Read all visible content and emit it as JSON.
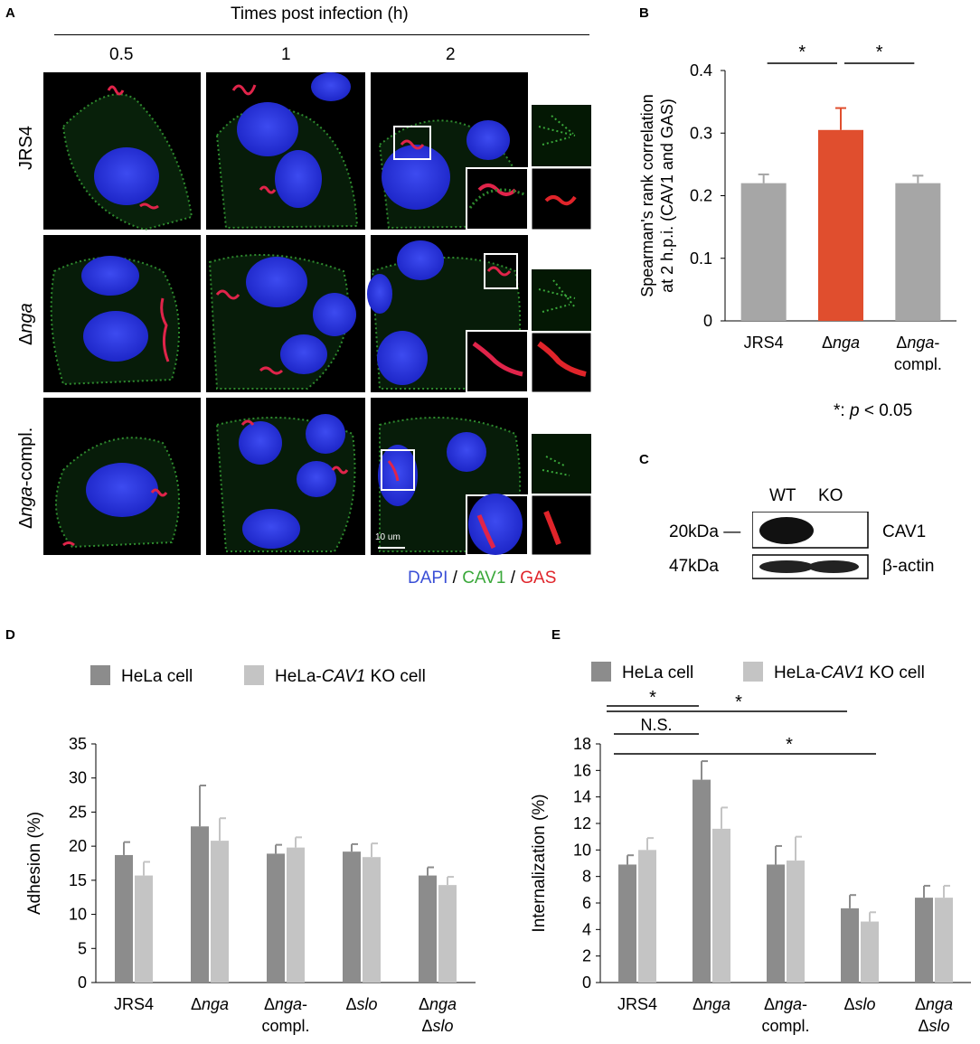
{
  "panels": {
    "A": {
      "letter": "A",
      "time_header": "Times post infection (h)",
      "time_labels": [
        "0.5",
        "1",
        "2"
      ],
      "row_labels": [
        {
          "prefix": "",
          "italic": "",
          "plain": "JRS4"
        },
        {
          "prefix": "Δ",
          "italic": "nga",
          "plain": ""
        },
        {
          "prefix": "Δ",
          "italic": "nga",
          "plain": "-compl."
        }
      ],
      "scale_bar": "10 um",
      "legend": {
        "dapi": "DAPI",
        "sep1": " / ",
        "cav1": "CAV1",
        "sep2": " / ",
        "gas": "GAS"
      },
      "colors": {
        "dapi": "#3a4fd6",
        "cav1": "#3aa83a",
        "gas": "#e0242a"
      }
    },
    "B": {
      "letter": "B",
      "footnote_star": "*",
      "footnote_colon": ": ",
      "footnote_p": "p",
      "footnote_rest": " < 0.05"
    },
    "C": {
      "letter": "C",
      "lanes": [
        "WT",
        "KO"
      ],
      "markers": [
        "20kDa —",
        "47kDa"
      ],
      "proteins": [
        "CAV1",
        "β-actin"
      ]
    },
    "D": {
      "letter": "D"
    },
    "E": {
      "letter": "E"
    }
  },
  "chart_data": [
    {
      "panel": "B",
      "type": "bar",
      "categories": [
        {
          "prefix": "",
          "italic": "",
          "plain": "JRS4",
          "line2": ""
        },
        {
          "prefix": "Δ",
          "italic": "nga",
          "plain": "",
          "line2": ""
        },
        {
          "prefix": "Δ",
          "italic": "nga",
          "plain": "-",
          "line2": "compl."
        }
      ],
      "values": [
        0.22,
        0.305,
        0.22
      ],
      "errors": [
        0.014,
        0.035,
        0.012
      ],
      "bar_colors": [
        "#a6a6a6",
        "#e04e2e",
        "#a6a6a6"
      ],
      "ylabel": "Spearman's rank correlation",
      "ylabel2": "at 2 h.p.i. (CAV1 and GAS)",
      "ylim": [
        0,
        0.4
      ],
      "yticks": [
        "0",
        "0.1",
        "0.2",
        "0.3",
        "0.4"
      ],
      "significance": [
        {
          "from": 0,
          "to": 1,
          "label": "*"
        },
        {
          "from": 1,
          "to": 2,
          "label": "*"
        }
      ]
    },
    {
      "panel": "D",
      "type": "bar",
      "categories": [
        {
          "prefix": "",
          "italic": "",
          "plain": "JRS4",
          "line2pre": "",
          "line2": ""
        },
        {
          "prefix": "Δ",
          "italic": "nga",
          "plain": "",
          "line2pre": "",
          "line2": ""
        },
        {
          "prefix": "Δ",
          "italic": "nga",
          "plain": "-",
          "line2pre": "",
          "line2": "compl."
        },
        {
          "prefix": "Δ",
          "italic": "slo",
          "plain": "",
          "line2pre": "",
          "line2": ""
        },
        {
          "prefix": "Δ",
          "italic": "nga",
          "plain": "",
          "line2pre": "Δ",
          "line2": "slo"
        }
      ],
      "series": [
        {
          "name": "HeLa cell",
          "color": "#8c8c8c",
          "values": [
            18.7,
            22.9,
            18.9,
            19.2,
            15.7
          ],
          "errors": [
            1.9,
            6.0,
            1.3,
            1.1,
            1.2
          ]
        },
        {
          "name_pre": "HeLa-",
          "name_italic": "CAV1",
          "name_post": " KO cell",
          "color": "#c4c4c4",
          "values": [
            15.7,
            20.8,
            19.8,
            18.4,
            14.3
          ],
          "errors": [
            2.0,
            3.3,
            1.5,
            2.0,
            1.2
          ]
        }
      ],
      "ylabel": "Adhesion (%)",
      "ylim": [
        0,
        35
      ],
      "yticks": [
        "0",
        "5",
        "10",
        "15",
        "20",
        "25",
        "30",
        "35"
      ]
    },
    {
      "panel": "E",
      "type": "bar",
      "categories": [
        {
          "prefix": "",
          "italic": "",
          "plain": "JRS4",
          "line2pre": "",
          "line2": ""
        },
        {
          "prefix": "Δ",
          "italic": "nga",
          "plain": "",
          "line2pre": "",
          "line2": ""
        },
        {
          "prefix": "Δ",
          "italic": "nga",
          "plain": "-",
          "line2pre": "",
          "line2": "compl."
        },
        {
          "prefix": "Δ",
          "italic": "slo",
          "plain": "",
          "line2pre": "",
          "line2": ""
        },
        {
          "prefix": "Δ",
          "italic": "nga",
          "plain": "",
          "line2pre": "Δ",
          "line2": "slo"
        }
      ],
      "series": [
        {
          "name": "HeLa cell",
          "color": "#8c8c8c",
          "values": [
            8.9,
            15.3,
            8.9,
            5.6,
            6.4
          ],
          "errors": [
            0.7,
            1.4,
            1.4,
            1.0,
            0.9
          ]
        },
        {
          "name_pre": "HeLa-",
          "name_italic": "CAV1",
          "name_post": " KO cell",
          "color": "#c4c4c4",
          "values": [
            10.0,
            11.6,
            9.2,
            4.6,
            6.4
          ],
          "errors": [
            0.9,
            1.6,
            1.8,
            0.7,
            0.9
          ]
        }
      ],
      "ylabel": "Internalization (%)",
      "ylim": [
        0,
        18
      ],
      "yticks": [
        "0",
        "2",
        "4",
        "6",
        "8",
        "10",
        "12",
        "14",
        "16",
        "18"
      ],
      "significance": [
        {
          "label": "*"
        },
        {
          "label": "N.S."
        },
        {
          "label": "*"
        },
        {
          "label": "*"
        }
      ]
    }
  ]
}
